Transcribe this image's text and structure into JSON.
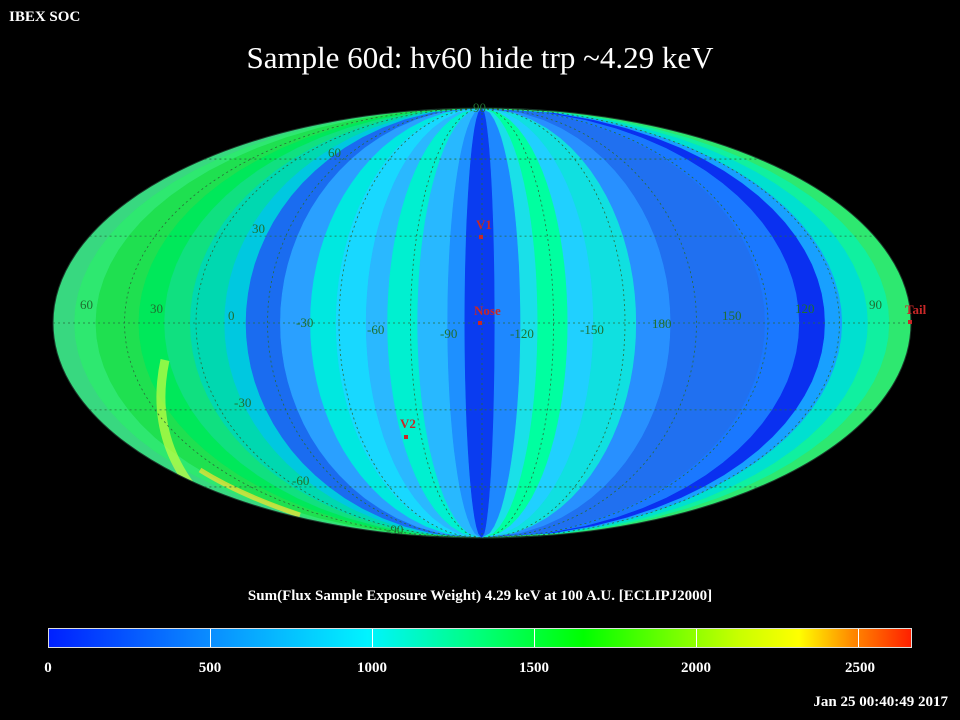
{
  "header": {
    "org": "IBEX SOC",
    "timestamp": "Jan 25 00:40:49 2017"
  },
  "title": "Sample 60d: hv60 hide trp ~4.29 keV",
  "colorbar": {
    "title": "Sum(Flux Sample Exposure Weight)  4.29 keV at 100 A.U. [ECLIPJ2000]",
    "labels": [
      "0",
      "500",
      "1000",
      "1500",
      "2000",
      "2500"
    ]
  },
  "map": {
    "projection": "Mollweide",
    "center_longitude": 105,
    "lon_labels": [
      "60",
      "30",
      "0",
      "-30",
      "-60",
      "-90",
      "-120",
      "-150",
      "180",
      "150",
      "120",
      "90"
    ],
    "lat_labels": [
      "90",
      "60",
      "30",
      "-30",
      "-60",
      "-90"
    ],
    "markers": [
      {
        "label": "V1",
        "color": "#c82828"
      },
      {
        "label": "Nose",
        "color": "#c82828"
      },
      {
        "label": "V2",
        "color": "#c82828"
      },
      {
        "label": "Tail",
        "color": "#c82828"
      }
    ]
  },
  "colors": {
    "background": "#000000",
    "marker": "#c82828",
    "grid_label": "#1f6f30"
  }
}
